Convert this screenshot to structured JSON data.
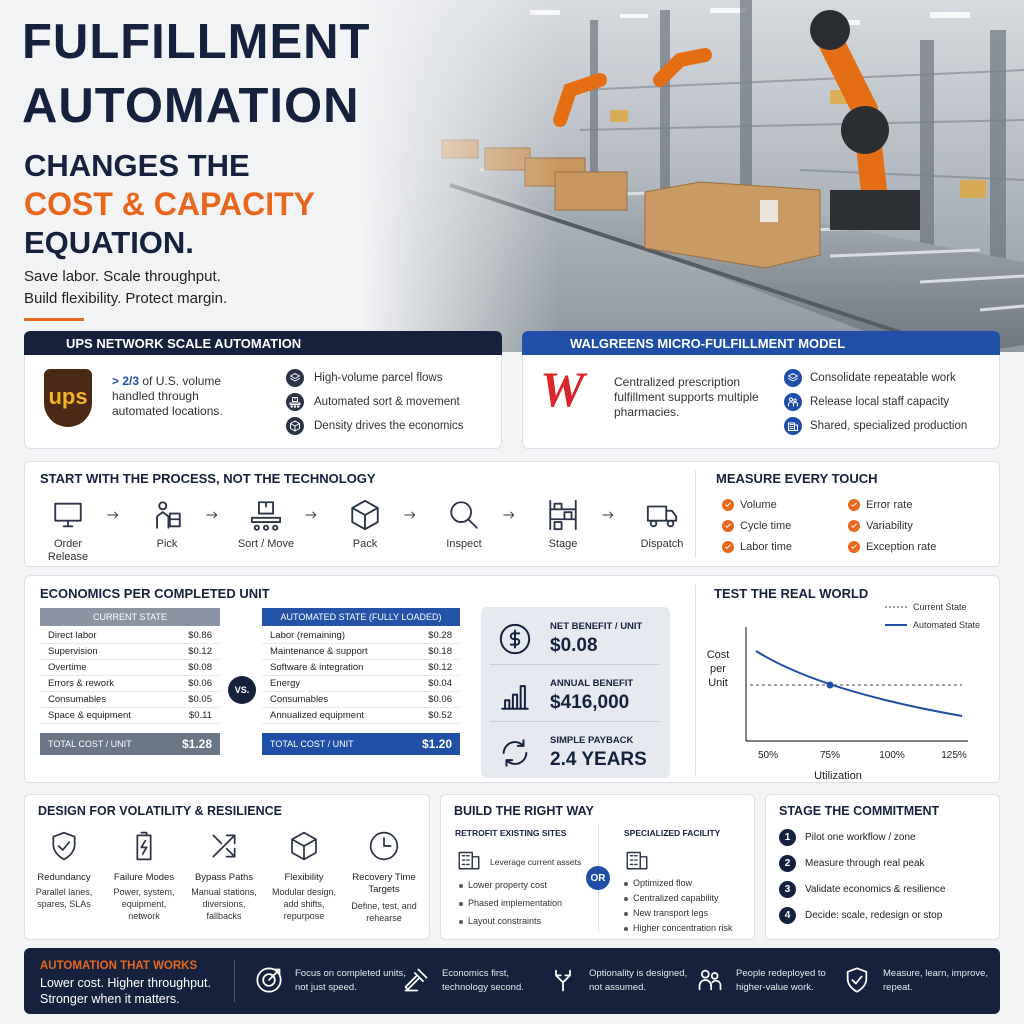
{
  "header": {
    "title_line1": "FULFILLMENT",
    "title_line2": "AUTOMATION",
    "subtitle_line1": "CHANGES THE",
    "subtitle_highlight": "COST & CAPACITY",
    "subtitle_line3": "EQUATION.",
    "tagline": [
      "Save labor. Scale throughput.",
      "Build flexibility. Protect margin."
    ]
  },
  "ups": {
    "title": "UPS NETWORK SCALE AUTOMATION",
    "logo": "ups",
    "stat_highlight": "> 2/3",
    "stat_text": "of U.S. volume handled through automated locations.",
    "points": [
      "High-volume parcel flows",
      "Automated sort & movement",
      "Density drives the economics"
    ]
  },
  "walgreens": {
    "title": "WALGREENS MICRO-FULFILLMENT MODEL",
    "logo": "W",
    "description": "Centralized prescription fulfillment supports multiple pharmacies.",
    "points": [
      "Consolidate repeatable work",
      "Release local staff capacity",
      "Shared, specialized production"
    ]
  },
  "process": {
    "title": "START WITH THE PROCESS, NOT THE TECHNOLOGY",
    "steps": [
      "Order Release",
      "Pick",
      "Sort / Move",
      "Pack",
      "Inspect",
      "Stage",
      "Dispatch"
    ]
  },
  "measure": {
    "title": "MEASURE EVERY TOUCH",
    "items": [
      "Volume",
      "Error rate",
      "Cycle time",
      "Variability",
      "Labor time",
      "Exception rate"
    ]
  },
  "economics": {
    "title": "ECONOMICS PER COMPLETED UNIT",
    "current": {
      "title": "CURRENT STATE",
      "rows": [
        {
          "item": "Direct labor",
          "cost": "$0.86"
        },
        {
          "item": "Supervision",
          "cost": "$0.12"
        },
        {
          "item": "Overtime",
          "cost": "$0.08"
        },
        {
          "item": "Errors & rework",
          "cost": "$0.06"
        },
        {
          "item": "Consumables",
          "cost": "$0.05"
        },
        {
          "item": "Space & equipment",
          "cost": "$0.11"
        }
      ],
      "total_label": "TOTAL COST / UNIT",
      "total": "$1.28"
    },
    "vs": "VS.",
    "automated": {
      "title": "AUTOMATED STATE (FULLY LOADED)",
      "rows": [
        {
          "item": "Labor (remaining)",
          "cost": "$0.28"
        },
        {
          "item": "Maintenance & support",
          "cost": "$0.18"
        },
        {
          "item": "Software & integration",
          "cost": "$0.12"
        },
        {
          "item": "Energy",
          "cost": "$0.04"
        },
        {
          "item": "Consumables",
          "cost": "$0.06"
        },
        {
          "item": "Annualized equipment",
          "cost": "$0.52"
        }
      ],
      "total_label": "TOTAL COST / UNIT",
      "total": "$1.20"
    },
    "metrics": [
      {
        "label": "NET BENEFIT / UNIT",
        "value": "$0.08"
      },
      {
        "label": "ANNUAL BENEFIT",
        "value": "$416,000"
      },
      {
        "label": "SIMPLE PAYBACK",
        "value": "2.4 YEARS"
      }
    ]
  },
  "test": {
    "title": "TEST THE REAL WORLD",
    "legend": [
      "Current State",
      "Automated State"
    ],
    "y_label": "Cost per Unit",
    "x_label": "Utilization",
    "x_ticks": [
      "50%",
      "75%",
      "100%",
      "125%"
    ]
  },
  "design": {
    "title": "DESIGN FOR VOLATILITY & RESILIENCE",
    "items": [
      {
        "title": "Redundancy",
        "text": "Parallel lanes, spares, SLAs"
      },
      {
        "title": "Failure Modes",
        "text": "Power, system, equipment, network"
      },
      {
        "title": "Bypass Paths",
        "text": "Manual stations, diversions, fallbacks"
      },
      {
        "title": "Flexibility",
        "text": "Modular design, add shifts, repurpose"
      },
      {
        "title": "Recovery Time Targets",
        "text": "Define, test, and rehearse"
      }
    ]
  },
  "build": {
    "title": "BUILD THE RIGHT WAY",
    "retrofit": {
      "title": "RETROFIT EXISTING SITES",
      "lead": "Leverage current assets",
      "points": [
        "Lower property cost",
        "Phased implementation",
        "Layout constraints"
      ]
    },
    "or": "OR",
    "specialized": {
      "title": "SPECIALIZED FACILITY",
      "points": [
        "Optimized flow",
        "Centralized capability",
        "New transport legs",
        "Higher concentration risk"
      ]
    }
  },
  "stage": {
    "title": "STAGE THE COMMITMENT",
    "steps": [
      {
        "number": 1,
        "text": "Pilot one workflow / zone"
      },
      {
        "number": 2,
        "text": "Measure through real peak"
      },
      {
        "number": 3,
        "text": "Validate economics & resilience"
      },
      {
        "number": 4,
        "text": "Decide: scale, redesign or stop"
      }
    ]
  },
  "footer": {
    "title": "AUTOMATION THAT WORKS",
    "lines": [
      "Lower cost. Higher throughput.",
      "Stronger when it matters."
    ],
    "points": [
      "Focus on completed units, not just speed.",
      "Economics first, technology second.",
      "Optionality is designed, not assumed.",
      "People redeployed to higher-value work.",
      "Measure, learn, improve, repeat."
    ]
  }
}
